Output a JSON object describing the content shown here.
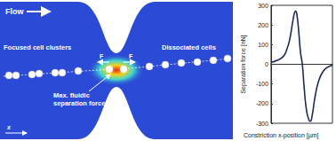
{
  "diagram": {
    "flow_label": "Flow",
    "left_label": "Focused cell clusters",
    "right_label": "Dissociated cells",
    "force_label": [
      "Max. fluidic",
      "separation force"
    ],
    "force_symbol": "F",
    "axis_symbol": "x"
  },
  "chart_data": {
    "type": "line",
    "color": "#1f2a5a",
    "xlabel": "Constriction x-position [µm]",
    "ylabel": "Separation force [nN]",
    "x": [
      0,
      10,
      20,
      25,
      30,
      35,
      38,
      40,
      42,
      45,
      48,
      51,
      54,
      58,
      62,
      64,
      67,
      72,
      78,
      85,
      92,
      100
    ],
    "values": [
      10,
      20,
      40,
      70,
      120,
      210,
      260,
      270,
      255,
      170,
      60,
      0,
      -120,
      -240,
      -285,
      -290,
      -260,
      -160,
      -80,
      -35,
      -15,
      -5
    ],
    "xlim": [
      0,
      100
    ],
    "ylim": [
      -300,
      300
    ],
    "yticks": [
      -300,
      -200,
      -100,
      0,
      100,
      200,
      300
    ],
    "grid": false,
    "tick_labels": "y"
  }
}
